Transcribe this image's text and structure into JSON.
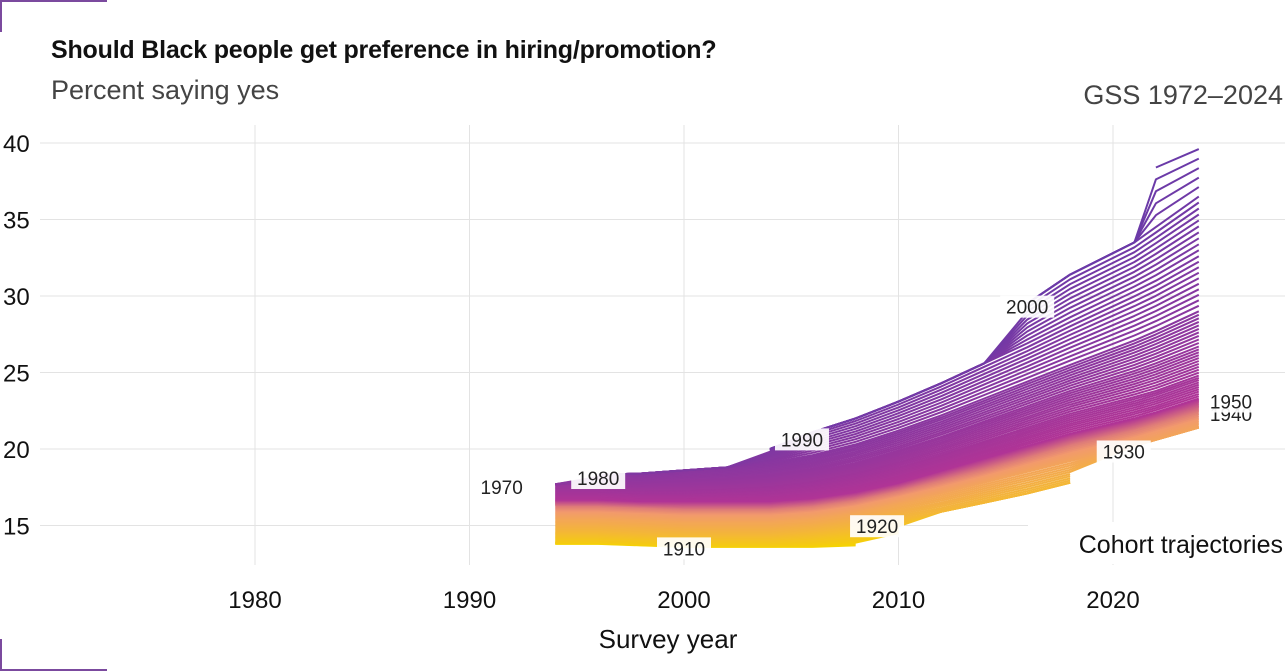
{
  "header": {
    "title": "Should Black people get preference in hiring/promotion?",
    "subtitle": "Percent saying yes",
    "caption": "GSS 1972–2024"
  },
  "chart_data": {
    "type": "line",
    "title": "Should Black people get preference in hiring/promotion?",
    "subtitle": "Percent saying yes",
    "xlabel": "Survey year",
    "ylabel": "",
    "xlim": [
      1972,
      2026
    ],
    "ylim": [
      12.5,
      41
    ],
    "x_ticks": [
      1980,
      1990,
      2000,
      2010,
      2020
    ],
    "y_ticks": [
      15,
      20,
      25,
      30,
      35,
      40
    ],
    "grid": true,
    "legend": "none",
    "annotation": "Cohort trajectories",
    "survey_years": [
      1994,
      1996,
      1998,
      2000,
      2002,
      2004,
      2006,
      2008,
      2010,
      2012,
      2014,
      2016,
      2018,
      2021,
      2022,
      2024
    ],
    "cohorts": {
      "first": 1905,
      "last": 2005,
      "color_oldest": "#f5d400",
      "color_middle": "#f29a6c",
      "color_youngest": "#6a3aa8",
      "anchors": [
        {
          "cohort": 1905,
          "values": [
            13.8,
            13.8,
            13.7,
            13.6,
            13.6,
            13.6,
            13.6,
            13.7
          ]
        },
        {
          "cohort": 1910,
          "values": [
            13.9,
            13.9,
            13.8,
            13.7,
            13.7,
            13.7,
            13.8,
            14.0,
            14.5
          ]
        },
        {
          "cohort": 1920,
          "values": [
            14.6,
            14.6,
            14.5,
            14.4,
            14.4,
            14.4,
            14.6,
            14.9,
            15.4,
            15.9,
            16.5,
            17.1,
            17.8
          ]
        },
        {
          "cohort": 1930,
          "values": [
            15.5,
            15.5,
            15.4,
            15.3,
            15.3,
            15.3,
            15.5,
            15.9,
            16.5,
            17.1,
            17.8,
            18.5,
            19.2,
            20.2,
            20.6,
            21.4
          ]
        },
        {
          "cohort": 1940,
          "values": [
            16.3,
            16.3,
            16.2,
            16.1,
            16.1,
            16.1,
            16.3,
            16.7,
            17.3,
            18.0,
            18.7,
            19.5,
            20.3,
            21.3,
            21.7,
            22.5
          ]
        },
        {
          "cohort": 1950,
          "values": [
            16.7,
            16.7,
            16.6,
            16.6,
            16.6,
            16.6,
            16.8,
            17.2,
            17.8,
            18.6,
            19.4,
            20.2,
            21.0,
            22.0,
            22.4,
            23.3
          ]
        },
        {
          "cohort": 1960,
          "values": [
            17.2,
            17.2,
            17.1,
            17.1,
            17.2,
            17.3,
            17.6,
            18.1,
            18.8,
            19.6,
            20.5,
            21.4,
            22.3,
            23.4,
            23.8,
            24.8
          ]
        },
        {
          "cohort": 1970,
          "values": [
            17.7,
            17.7,
            17.7,
            17.8,
            17.9,
            18.1,
            18.5,
            19.1,
            19.9,
            20.8,
            21.8,
            22.8,
            23.8,
            25.1,
            25.6,
            26.7
          ]
        },
        {
          "cohort": 1980,
          "values": [
            null,
            18.3,
            18.4,
            18.6,
            18.8,
            19.1,
            19.6,
            20.3,
            21.2,
            22.2,
            23.3,
            24.4,
            25.5,
            27.1,
            27.7,
            29.0
          ]
        },
        {
          "cohort": 1990,
          "values": [
            null,
            null,
            null,
            null,
            null,
            20.0,
            21.1,
            22.0,
            23.1,
            24.3,
            25.6,
            26.9,
            28.3,
            30.3,
            31.0,
            32.6
          ]
        },
        {
          "cohort": 2000,
          "values": [
            null,
            null,
            null,
            null,
            null,
            null,
            null,
            null,
            null,
            null,
            null,
            29.5,
            31.4,
            33.5,
            34.5,
            36.5
          ]
        },
        {
          "cohort": 2005,
          "values": [
            null,
            null,
            null,
            null,
            null,
            null,
            null,
            null,
            null,
            null,
            null,
            null,
            null,
            null,
            38.4,
            39.6
          ]
        }
      ]
    },
    "labels": [
      {
        "text": "1910",
        "cohort": 1910,
        "x": 2000
      },
      {
        "text": "1920",
        "cohort": 1920,
        "x": 2009
      },
      {
        "text": "1930",
        "cohort": 1930,
        "x": 2020.5
      },
      {
        "text": "1940",
        "cohort": 1940,
        "x": 2025.5
      },
      {
        "text": "1950",
        "cohort": 1950,
        "x": 2025.5
      },
      {
        "text": "1970",
        "cohort": 1970,
        "x": 1991.5
      },
      {
        "text": "1980",
        "cohort": 1980,
        "x": 1996
      },
      {
        "text": "1990",
        "cohort": 1990,
        "x": 2005.5
      },
      {
        "text": "2000",
        "cohort": 2000,
        "x": 2016
      }
    ]
  }
}
